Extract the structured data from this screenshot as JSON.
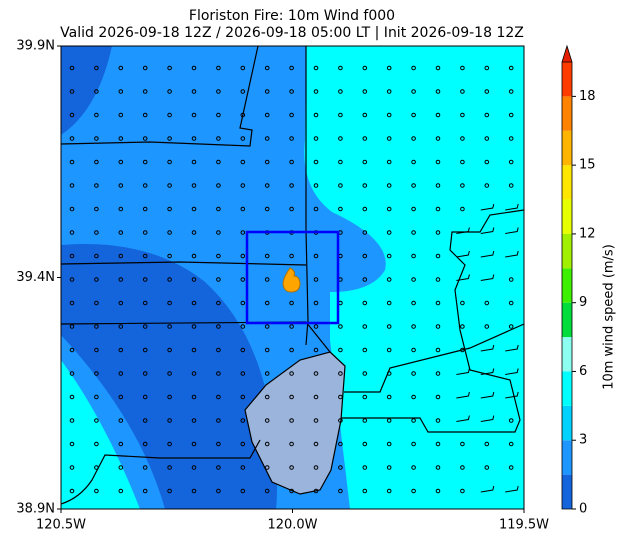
{
  "chart_data": {
    "type": "map",
    "title": "Floriston Fire: 10m Wind f000",
    "subtitle": "Valid 2026-09-18 12Z / 2026-09-18 05:00 LT | Init 2026-09-18 12Z",
    "xlim": [
      -120.5,
      -119.5
    ],
    "ylim": [
      38.9,
      39.9
    ],
    "xticks": [
      {
        "value": -120.5,
        "label": "120.5W"
      },
      {
        "value": -120.0,
        "label": "120.0W"
      },
      {
        "value": -119.5,
        "label": "119.5W"
      }
    ],
    "yticks": [
      {
        "value": 39.9,
        "label": "39.9N"
      },
      {
        "value": 39.4,
        "label": "39.4N"
      },
      {
        "value": 38.9,
        "label": "38.9N"
      }
    ],
    "colorbar": {
      "label": "10m wind speed (m/s)",
      "levels": [
        0,
        1.5,
        3,
        4.5,
        6,
        7.5,
        9,
        10.5,
        12,
        13.5,
        15,
        16.5,
        18,
        19.5
      ],
      "colors": [
        "#1464dc",
        "#1e96ff",
        "#00d2ff",
        "#00ffff",
        "#8cfff0",
        "#00dc3c",
        "#3cf000",
        "#a0f000",
        "#e6ff00",
        "#ffe600",
        "#ffb400",
        "#ff8200",
        "#ff3c00"
      ],
      "extend_color": "#e61e00",
      "ticks": [
        0,
        3,
        6,
        9,
        12,
        15,
        18
      ]
    }
  }
}
